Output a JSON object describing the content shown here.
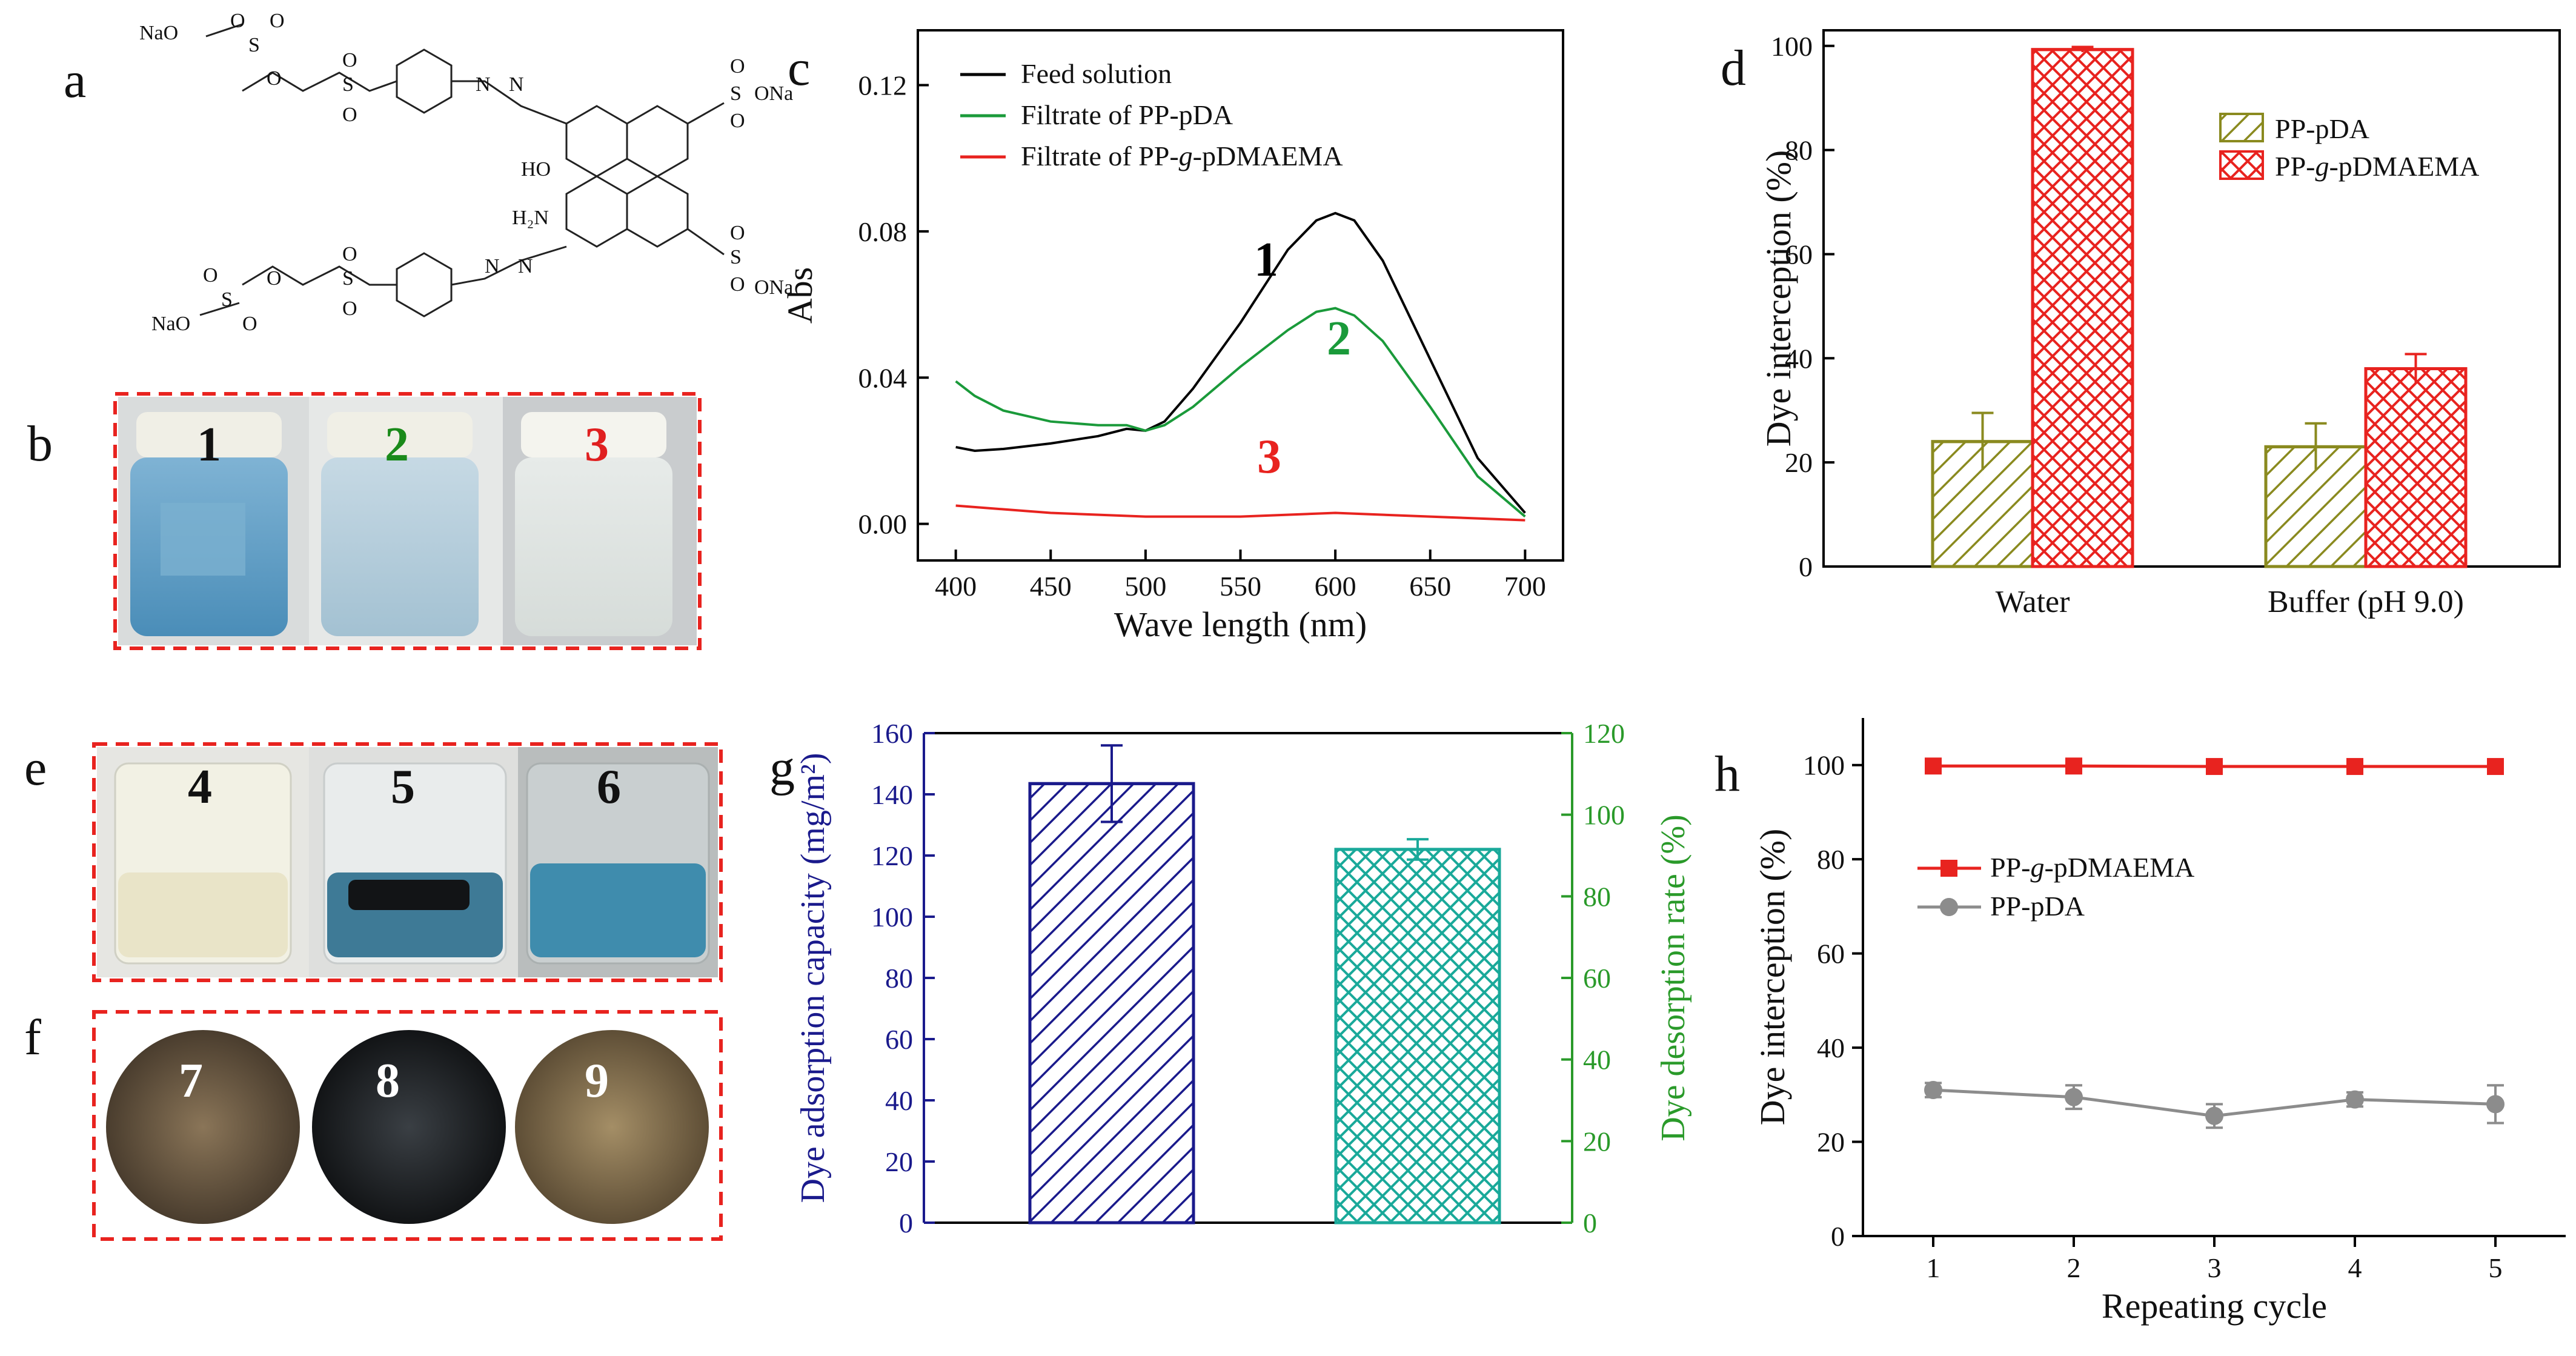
{
  "panel_letters": {
    "a": "a",
    "b": "b",
    "c": "c",
    "d": "d",
    "e": "e",
    "f": "f",
    "g": "g",
    "h": "h"
  },
  "structure": {
    "groups": [
      "NaO",
      "O",
      "O",
      "S",
      "O",
      "S",
      "O",
      "O",
      "N",
      "N",
      "O",
      "O",
      "S",
      "ONa",
      "HO",
      "H2N",
      "N",
      "N",
      "O",
      "O",
      "S",
      "ONa",
      "O",
      "S",
      "O",
      "NaO",
      "S",
      "O",
      "O",
      "O"
    ],
    "labels": {
      "nao_top": "NaO",
      "nao_bottom": "NaO",
      "ona_top": "ONa",
      "ona_bottom": "ONa",
      "ho": "HO",
      "h2n": "H₂N",
      "s": "S",
      "o": "O",
      "n": "N"
    }
  },
  "photos_b": {
    "labels": [
      "1",
      "2",
      "3"
    ],
    "label_colors": [
      "#111111",
      "#1a8a1a",
      "#e02020"
    ]
  },
  "photos_e": {
    "labels": [
      "4",
      "5",
      "6"
    ]
  },
  "photos_f": {
    "labels": [
      "7",
      "8",
      "9"
    ]
  },
  "colors": {
    "red": "#e8231f",
    "green": "#1aa040",
    "navy": "#1a1a8c",
    "teal": "#1aa99a",
    "olive": "#8a8a1f",
    "gray": "#8c8c8c",
    "dash": "#e8231f"
  },
  "chart_data": [
    {
      "panel": "c",
      "type": "line",
      "xlabel": "Wave length (nm)",
      "ylabel": "Abs",
      "xlim": [
        380,
        720
      ],
      "ylim": [
        -0.01,
        0.135
      ],
      "xticks": [
        400,
        450,
        500,
        550,
        600,
        650,
        700
      ],
      "yticks": [
        0.0,
        0.04,
        0.08,
        0.12
      ],
      "ytick_labels": [
        "0.00",
        "0.04",
        "0.08",
        "0.12"
      ],
      "legend": [
        "Feed solution",
        "Filtrate of PP-pDA",
        "Filtrate of PP-g-pDMAEMA"
      ],
      "legend_parts": [
        [
          "Feed solution",
          "",
          ""
        ],
        [
          "Filtrate of PP-pDA",
          "",
          ""
        ],
        [
          "Filtrate of PP-",
          "g",
          "-pDMAEMA"
        ]
      ],
      "series": [
        {
          "name": "Feed solution",
          "color": "#000000",
          "label": "1",
          "x": [
            400,
            410,
            425,
            450,
            475,
            490,
            500,
            510,
            525,
            550,
            575,
            590,
            600,
            610,
            625,
            650,
            675,
            700
          ],
          "y": [
            0.021,
            0.02,
            0.0205,
            0.022,
            0.024,
            0.026,
            0.0255,
            0.028,
            0.037,
            0.055,
            0.075,
            0.083,
            0.085,
            0.083,
            0.072,
            0.045,
            0.018,
            0.003
          ]
        },
        {
          "name": "Filtrate of PP-pDA",
          "color": "#1a9a3a",
          "label": "2",
          "x": [
            400,
            410,
            425,
            450,
            475,
            490,
            500,
            510,
            525,
            550,
            575,
            590,
            600,
            610,
            625,
            650,
            675,
            700
          ],
          "y": [
            0.039,
            0.035,
            0.031,
            0.028,
            0.027,
            0.027,
            0.0255,
            0.027,
            0.032,
            0.043,
            0.053,
            0.058,
            0.059,
            0.057,
            0.05,
            0.032,
            0.013,
            0.002
          ]
        },
        {
          "name": "Filtrate of PP-g-pDMAEMA",
          "color": "#e8231f",
          "label": "3",
          "x": [
            400,
            425,
            450,
            500,
            550,
            600,
            650,
            700
          ],
          "y": [
            0.005,
            0.004,
            0.003,
            0.002,
            0.002,
            0.003,
            0.002,
            0.001
          ]
        }
      ]
    },
    {
      "panel": "d",
      "type": "bar",
      "ylabel": "Dye interception (%)",
      "ylim": [
        0,
        100
      ],
      "yticks": [
        0,
        20,
        40,
        60,
        80,
        100
      ],
      "categories": [
        "Water",
        "Buffer (pH 9.0)"
      ],
      "legend_parts": [
        [
          "PP-pDA",
          "",
          ""
        ],
        [
          "PP-",
          "g",
          "-pDMAEMA"
        ]
      ],
      "series": [
        {
          "name": "PP-pDA",
          "values": [
            24.0,
            23.0
          ],
          "errors": [
            5.5,
            4.5
          ]
        },
        {
          "name": "PP-g-pDMAEMA",
          "values": [
            99.3,
            38.0
          ],
          "errors": [
            0.5,
            2.8
          ]
        }
      ]
    },
    {
      "panel": "g",
      "type": "bar",
      "ylabel_left": "Dye adsorption capacity (mg/m²)",
      "ylabel_right": "Dye desorption rate (%)",
      "ylim_left": [
        0,
        160
      ],
      "ylim_right": [
        0,
        120
      ],
      "yticks_left": [
        0,
        20,
        40,
        60,
        80,
        100,
        120,
        140,
        160
      ],
      "yticks_right": [
        0,
        20,
        40,
        60,
        80,
        100,
        120
      ],
      "bars": [
        {
          "name": "Dye adsorption capacity",
          "axis": "left",
          "value": 143.5,
          "error": 12.5
        },
        {
          "name": "Dye desorption rate",
          "axis": "right",
          "value": 91.5,
          "error": 2.5
        }
      ]
    },
    {
      "panel": "h",
      "type": "line",
      "xlabel": "Repeating cycle",
      "ylabel": "Dye interception (%)",
      "xlim": [
        0.5,
        5.5
      ],
      "ylim": [
        0,
        110
      ],
      "xticks": [
        1,
        2,
        3,
        4,
        5
      ],
      "yticks": [
        0,
        20,
        40,
        60,
        80,
        100
      ],
      "legend_parts": [
        [
          "PP-",
          "g",
          "-pDMAEMA"
        ],
        [
          "PP-pDA",
          "",
          ""
        ]
      ],
      "series": [
        {
          "name": "PP-g-pDMAEMA",
          "marker": "square",
          "color": "#e8231f",
          "x": [
            1,
            2,
            3,
            4,
            5
          ],
          "y": [
            99.8,
            99.8,
            99.7,
            99.7,
            99.7
          ],
          "errors": [
            0.3,
            0.3,
            0.3,
            0.3,
            0.3
          ]
        },
        {
          "name": "PP-pDA",
          "marker": "circle",
          "color": "#8c8c8c",
          "x": [
            1,
            2,
            3,
            4,
            5
          ],
          "y": [
            31.0,
            29.5,
            25.5,
            29.0,
            28.0
          ],
          "errors": [
            1.5,
            2.5,
            2.5,
            1.5,
            4.0
          ]
        }
      ]
    }
  ]
}
